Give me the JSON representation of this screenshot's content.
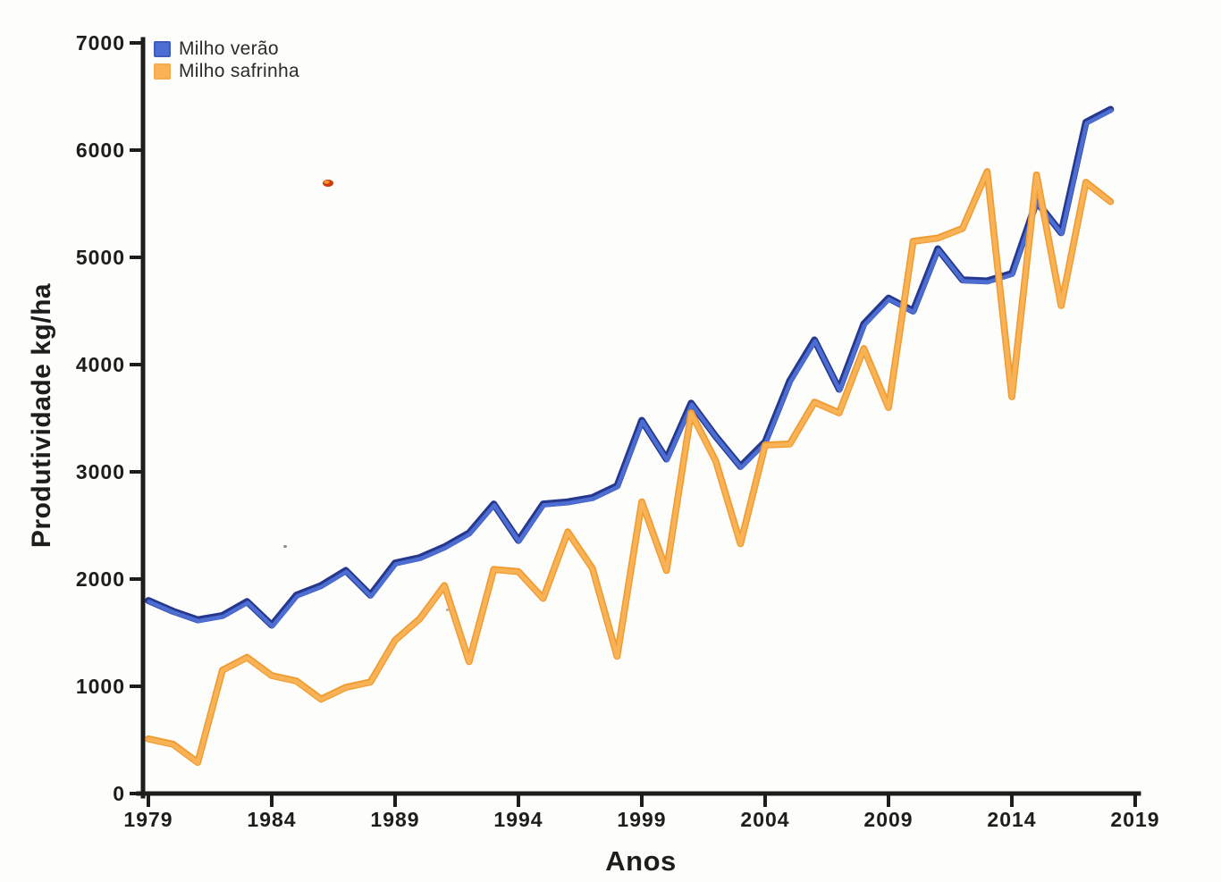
{
  "axes": {
    "y_label": "Produtividade kg/ha",
    "x_label": "Anos"
  },
  "legend": {
    "items": [
      {
        "label": "Milho verão"
      },
      {
        "label": "Milho safrinha"
      }
    ]
  },
  "colors": {
    "background": "#fdfdfb",
    "axis": "#1d1d1b",
    "verao_line": "#4c6ed3",
    "verao_edge": "#26388e",
    "safrinha_line": "#fab257",
    "safrinha_edge": "#ef9d33",
    "artifact_red": "#cf3a10",
    "artifact_orange": "#f59b2d"
  },
  "chart_data": {
    "type": "line",
    "title": "",
    "xlabel": "Anos",
    "ylabel": "Produtividade kg/ha",
    "xlim": [
      1979,
      2019
    ],
    "ylim": [
      0,
      7000
    ],
    "x_ticks": [
      1979,
      1984,
      1989,
      1994,
      1999,
      2004,
      2009,
      2014,
      2019
    ],
    "y_ticks": [
      0,
      1000,
      2000,
      3000,
      4000,
      5000,
      6000,
      7000
    ],
    "grid": false,
    "legend_position": "top-left",
    "x": [
      1979,
      1980,
      1981,
      1982,
      1983,
      1984,
      1985,
      1986,
      1987,
      1988,
      1989,
      1990,
      1991,
      1992,
      1993,
      1994,
      1995,
      1996,
      1997,
      1998,
      1999,
      2000,
      2001,
      2002,
      2003,
      2004,
      2005,
      2006,
      2007,
      2008,
      2009,
      2010,
      2011,
      2012,
      2013,
      2014,
      2015,
      2016,
      2017,
      2018
    ],
    "series": [
      {
        "name": "Milho verão",
        "color": "#4c6ed3",
        "edge": "#26388e",
        "values": [
          1800,
          1700,
          1620,
          1660,
          1790,
          1570,
          1850,
          1940,
          2080,
          1850,
          2150,
          2200,
          2300,
          2430,
          2700,
          2360,
          2700,
          2720,
          2760,
          2870,
          3480,
          3120,
          3640,
          3330,
          3050,
          3280,
          3850,
          4230,
          3770,
          4380,
          4620,
          4500,
          5080,
          4790,
          4780,
          4850,
          5520,
          5230,
          6260,
          6380
        ]
      },
      {
        "name": "Milho safrinha",
        "color": "#fab257",
        "edge": "#ef9d33",
        "values": [
          510,
          460,
          290,
          1150,
          1270,
          1100,
          1050,
          880,
          990,
          1040,
          1430,
          1630,
          1940,
          1230,
          2090,
          2070,
          1820,
          2440,
          2100,
          1280,
          2720,
          2080,
          3550,
          3100,
          2330,
          3250,
          3260,
          3650,
          3550,
          4150,
          3600,
          5150,
          5180,
          5270,
          5800,
          3700,
          5770,
          4550,
          5700,
          5520
        ]
      }
    ]
  }
}
